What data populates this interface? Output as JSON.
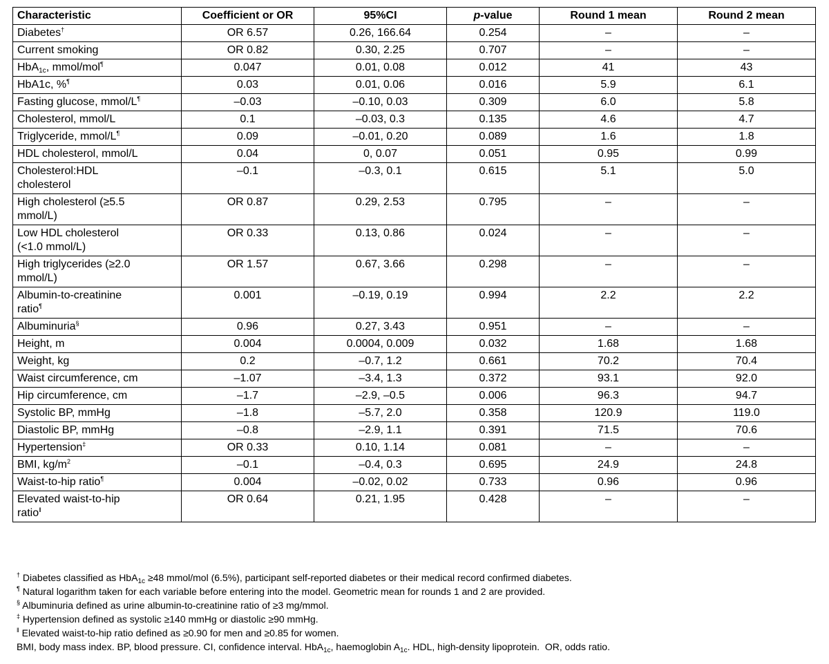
{
  "table": {
    "header": [
      "Characteristic",
      "Coefficient or OR",
      "95%CI",
      [
        {
          "i": "p"
        },
        "-value"
      ],
      "Round 1 mean",
      "Round 2 mean"
    ],
    "rows": [
      [
        [
          "Diabetes",
          {
            "sup": "†"
          }
        ],
        "OR 6.57",
        "0.26, 166.64",
        "0.254",
        "–",
        "–"
      ],
      [
        "Current smoking",
        "OR 0.82",
        "0.30, 2.25",
        "0.707",
        "–",
        "–"
      ],
      [
        [
          "HbA",
          {
            "sub": "1c"
          },
          ", mmol/mol",
          {
            "sup": "¶"
          }
        ],
        "0.047",
        "0.01, 0.08",
        "0.012",
        "41",
        "43"
      ],
      [
        [
          "HbA1c, %",
          {
            "sup": "¶"
          }
        ],
        "0.03",
        "0.01, 0.06",
        "0.016",
        "5.9",
        "6.1"
      ],
      [
        [
          "Fasting glucose, mmol/L",
          {
            "sup": "¶"
          }
        ],
        "–0.03",
        "–0.10, 0.03",
        "0.309",
        "6.0",
        "5.8"
      ],
      [
        "Cholesterol, mmol/L",
        "0.1",
        "–0.03, 0.3",
        "0.135",
        "4.6",
        "4.7"
      ],
      [
        [
          "Triglyceride, mmol/L",
          {
            "sup": "¶"
          }
        ],
        "0.09",
        "–0.01, 0.20",
        "0.089",
        "1.6",
        "1.8"
      ],
      [
        "HDL cholesterol, mmol/L",
        "0.04",
        "0, 0.07",
        "0.051",
        "0.95",
        "0.99"
      ],
      [
        "Cholesterol:HDL cholesterol",
        "–0.1",
        "–0.3, 0.1",
        "0.615",
        "5.1",
        "5.0"
      ],
      [
        "High cholesterol (≥5.5 mmol/L)",
        "OR 0.87",
        "0.29, 2.53",
        "0.795",
        "–",
        "–"
      ],
      [
        "Low HDL cholesterol (<1.0 mmol/L)",
        "OR 0.33",
        "0.13, 0.86",
        "0.024",
        "–",
        "–"
      ],
      [
        "High triglycerides (≥2.0 mmol/L)",
        "OR 1.57",
        "0.67, 3.66",
        "0.298",
        "–",
        "–"
      ],
      [
        [
          "Albumin-to-creatinine ratio",
          {
            "sup": "¶"
          }
        ],
        "0.001",
        "–0.19, 0.19",
        "0.994",
        "2.2",
        "2.2"
      ],
      [
        [
          "Albuminuria",
          {
            "sup": "§"
          }
        ],
        "0.96",
        "0.27, 3.43",
        "0.951",
        "–",
        "–"
      ],
      [
        "Height, m",
        "0.004",
        "0.0004, 0.009",
        "0.032",
        "1.68",
        "1.68"
      ],
      [
        "Weight, kg",
        "0.2",
        "–0.7, 1.2",
        "0.661",
        "70.2",
        "70.4"
      ],
      [
        "Waist circumference, cm",
        "–1.07",
        "–3.4, 1.3",
        "0.372",
        "93.1",
        "92.0"
      ],
      [
        "Hip circumference, cm",
        "–1.7",
        "–2.9, –0.5",
        "0.006",
        "96.3",
        "94.7"
      ],
      [
        "Systolic BP, mmHg",
        "–1.8",
        "–5.7, 2.0",
        "0.358",
        "120.9",
        "119.0"
      ],
      [
        "Diastolic BP, mmHg",
        "–0.8",
        "–2.9, 1.1",
        "0.391",
        "71.5",
        "70.6"
      ],
      [
        [
          "Hypertension",
          {
            "sup": "‡"
          }
        ],
        "OR 0.33",
        "0.10, 1.14",
        "0.081",
        "–",
        "–"
      ],
      [
        [
          "BMI, kg/m",
          {
            "sup": "2"
          }
        ],
        "–0.1",
        "–0.4, 0.3",
        "0.695",
        "24.9",
        "24.8"
      ],
      [
        [
          "Waist-to-hip ratio",
          {
            "sup": "¶"
          }
        ],
        "0.004",
        "–0.02, 0.02",
        "0.733",
        "0.96",
        "0.96"
      ],
      [
        [
          "Elevated waist-to-hip ratio",
          {
            "sup": "ǁ"
          }
        ],
        "OR 0.64",
        "0.21, 1.95",
        "0.428",
        "–",
        "–"
      ]
    ]
  },
  "footnotes": [
    [
      {
        "sup": "†"
      },
      " Diabetes classified as HbA",
      {
        "sub": "1c"
      },
      " ≥48 mmol/mol (6.5%), participant self-reported diabetes or their medical record confirmed diabetes."
    ],
    [
      {
        "sup": "¶"
      },
      " Natural logarithm taken for each variable before entering into the model. Geometric mean for rounds 1 and 2 are provided."
    ],
    [
      {
        "sup": "§"
      },
      " Albuminuria defined as urine albumin-to-creatinine ratio of ≥3 mg/mmol."
    ],
    [
      {
        "sup": "‡"
      },
      " Hypertension defined as systolic ≥140 mmHg or diastolic ≥90 mmHg."
    ],
    [
      {
        "sup": "ǁ"
      },
      " Elevated waist-to-hip ratio defined as ≥0.90 for men and ≥0.85 for women."
    ],
    [
      "BMI, body mass index. BP, blood pressure. CI, confidence interval. HbA",
      {
        "sub": "1c"
      },
      ", haemoglobin A",
      {
        "sub": "1c"
      },
      ". HDL, high-density lipoprotein.  OR, odds ratio."
    ]
  ]
}
